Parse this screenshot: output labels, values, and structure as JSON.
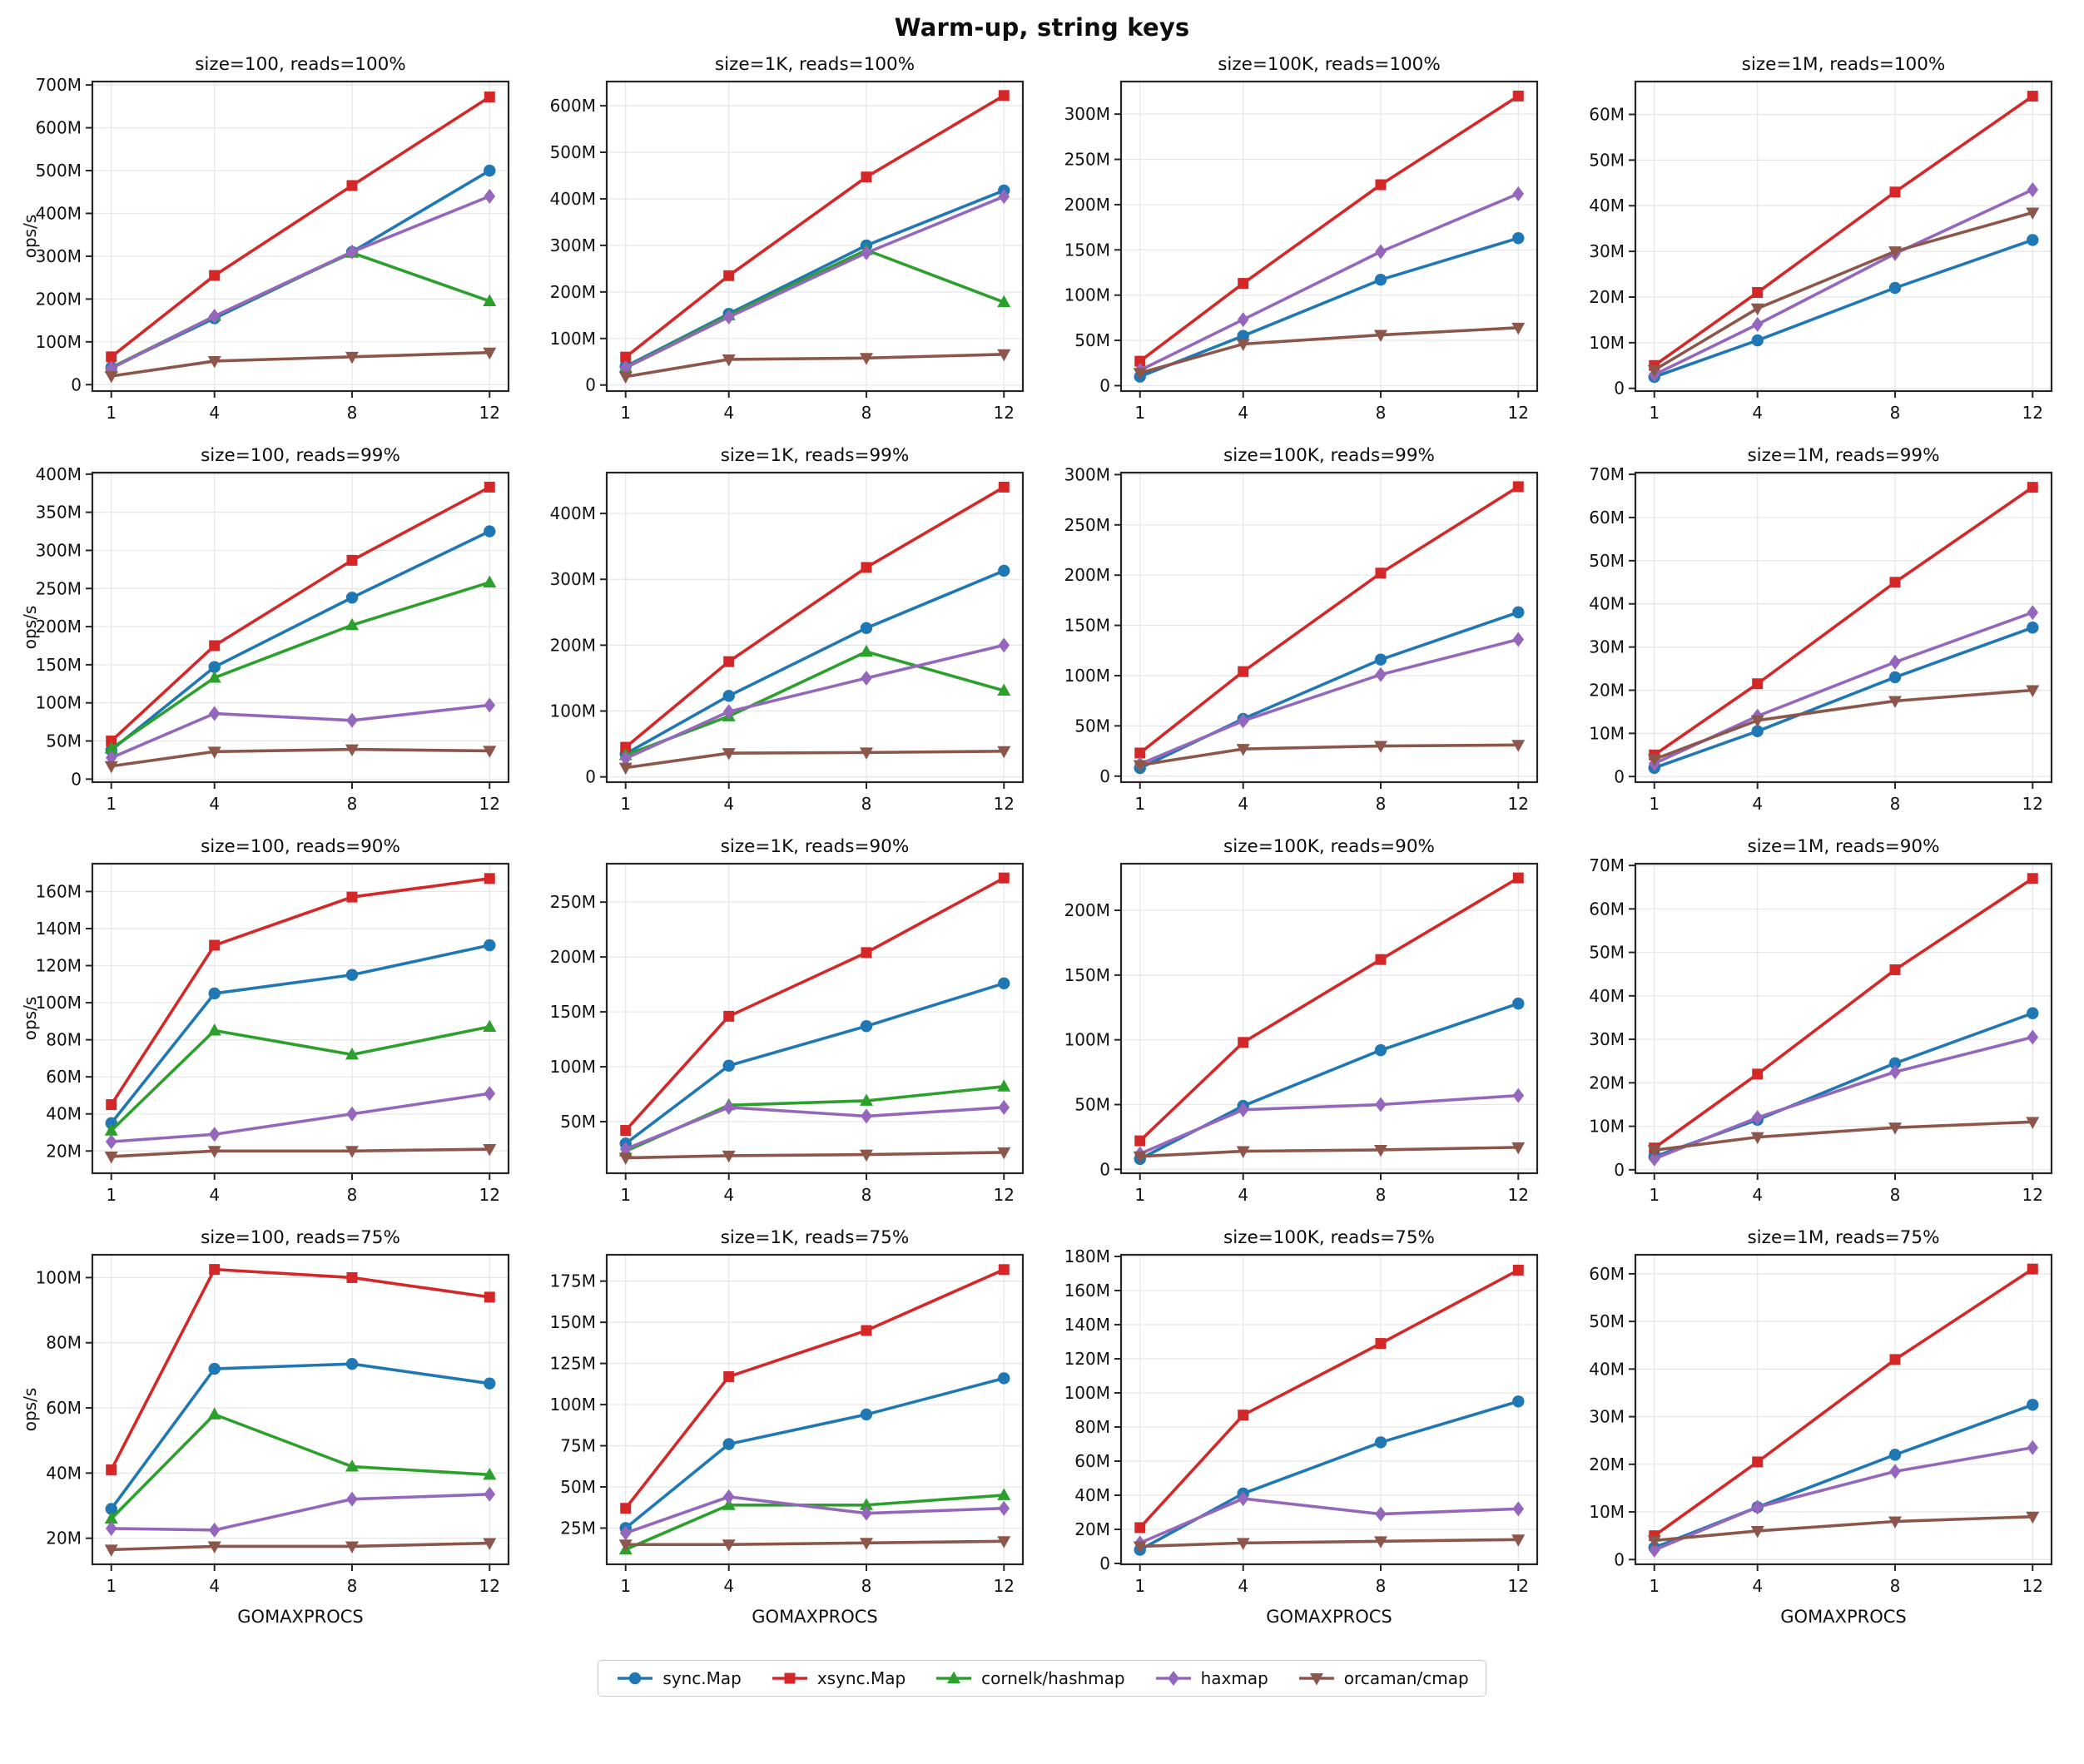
{
  "figure": {
    "title": "Warm-up, string keys",
    "xlabel": "GOMAXPROCS",
    "ylabel": "ops/s"
  },
  "legend": {
    "position": "bottom-center",
    "entries": [
      {
        "name": "sync.Map",
        "color": "#1f77b4",
        "marker": "circle"
      },
      {
        "name": "xsync.Map",
        "color": "#d62728",
        "marker": "square"
      },
      {
        "name": "cornelk/hashmap",
        "color": "#2ca02c",
        "marker": "triangle-up"
      },
      {
        "name": "haxmap",
        "color": "#9467bd",
        "marker": "diamond"
      },
      {
        "name": "orcaman/cmap",
        "color": "#8c564b",
        "marker": "triangle-down"
      }
    ]
  },
  "axes": {
    "x_ticks": [
      1,
      4,
      8,
      12
    ],
    "xlim": [
      0.45,
      12.55
    ],
    "grid": true,
    "grid_color": "#e6e6e6",
    "spine_color": "#262626",
    "value_unit": "M"
  },
  "chart_data": [
    {
      "type": "line",
      "row": 0,
      "col": 0,
      "title": "size=100, reads=100%",
      "x": [
        1,
        4,
        8,
        12
      ],
      "ylim": [
        -15,
        708
      ],
      "yticks": [
        0,
        100,
        200,
        300,
        400,
        500,
        600,
        700
      ],
      "series": [
        {
          "name": "sync.Map",
          "values": [
            40,
            155,
            310,
            500
          ]
        },
        {
          "name": "xsync.Map",
          "values": [
            65,
            255,
            465,
            672
          ]
        },
        {
          "name": "cornelk/hashmap",
          "values": [
            40,
            160,
            308,
            195
          ]
        },
        {
          "name": "haxmap",
          "values": [
            38,
            160,
            310,
            440
          ]
        },
        {
          "name": "orcaman/cmap",
          "values": [
            20,
            55,
            65,
            75
          ]
        }
      ]
    },
    {
      "type": "line",
      "row": 0,
      "col": 1,
      "title": "size=1K, reads=100%",
      "x": [
        1,
        4,
        8,
        12
      ],
      "ylim": [
        -13,
        652
      ],
      "yticks": [
        0,
        100,
        200,
        300,
        400,
        500,
        600
      ],
      "series": [
        {
          "name": "sync.Map",
          "values": [
            40,
            153,
            300,
            418
          ]
        },
        {
          "name": "xsync.Map",
          "values": [
            60,
            235,
            447,
            622
          ]
        },
        {
          "name": "cornelk/hashmap",
          "values": [
            38,
            150,
            290,
            178
          ]
        },
        {
          "name": "haxmap",
          "values": [
            37,
            146,
            284,
            405
          ]
        },
        {
          "name": "orcaman/cmap",
          "values": [
            18,
            55,
            58,
            66
          ]
        }
      ]
    },
    {
      "type": "line",
      "row": 0,
      "col": 2,
      "title": "size=100K, reads=100%",
      "x": [
        1,
        4,
        8,
        12
      ],
      "ylim": [
        -6,
        336
      ],
      "yticks": [
        0,
        50,
        100,
        150,
        200,
        250,
        300
      ],
      "series": [
        {
          "name": "sync.Map",
          "values": [
            10,
            55,
            117,
            163
          ]
        },
        {
          "name": "xsync.Map",
          "values": [
            27,
            113,
            222,
            320
          ]
        },
        {
          "name": "haxmap",
          "values": [
            17,
            73,
            148,
            212
          ]
        },
        {
          "name": "orcaman/cmap",
          "values": [
            14,
            46,
            56,
            64
          ]
        }
      ]
    },
    {
      "type": "line",
      "row": 0,
      "col": 3,
      "title": "size=1M, reads=100%",
      "x": [
        1,
        4,
        8,
        12
      ],
      "ylim": [
        -0.6,
        67.2
      ],
      "yticks": [
        0,
        10,
        20,
        30,
        40,
        50,
        60
      ],
      "series": [
        {
          "name": "sync.Map",
          "values": [
            2.5,
            10.5,
            22,
            32.5
          ]
        },
        {
          "name": "xsync.Map",
          "values": [
            5,
            21,
            43,
            64
          ]
        },
        {
          "name": "haxmap",
          "values": [
            3,
            14,
            29.5,
            43.5
          ]
        },
        {
          "name": "orcaman/cmap",
          "values": [
            4,
            17.5,
            30,
            38.5
          ]
        }
      ]
    },
    {
      "type": "line",
      "row": 1,
      "col": 0,
      "title": "size=100, reads=99%",
      "x": [
        1,
        4,
        8,
        12
      ],
      "ylim": [
        -4,
        402
      ],
      "yticks": [
        0,
        50,
        100,
        150,
        200,
        250,
        300,
        350,
        400
      ],
      "series": [
        {
          "name": "sync.Map",
          "values": [
            38,
            147,
            238,
            325
          ]
        },
        {
          "name": "xsync.Map",
          "values": [
            50,
            175,
            287,
            383
          ]
        },
        {
          "name": "cornelk/hashmap",
          "values": [
            40,
            133,
            202,
            258
          ]
        },
        {
          "name": "haxmap",
          "values": [
            28,
            86,
            77,
            97
          ]
        },
        {
          "name": "orcaman/cmap",
          "values": [
            17,
            36,
            39,
            37
          ]
        }
      ]
    },
    {
      "type": "line",
      "row": 1,
      "col": 1,
      "title": "size=1K, reads=99%",
      "x": [
        1,
        4,
        8,
        12
      ],
      "ylim": [
        -8,
        462
      ],
      "yticks": [
        0,
        100,
        200,
        300,
        400
      ],
      "series": [
        {
          "name": "sync.Map",
          "values": [
            35,
            123,
            226,
            313
          ]
        },
        {
          "name": "xsync.Map",
          "values": [
            45,
            175,
            318,
            440
          ]
        },
        {
          "name": "cornelk/hashmap",
          "values": [
            33,
            92,
            190,
            131
          ]
        },
        {
          "name": "haxmap",
          "values": [
            28,
            99,
            150,
            200
          ]
        },
        {
          "name": "orcaman/cmap",
          "values": [
            14,
            36,
            37,
            39
          ]
        }
      ]
    },
    {
      "type": "line",
      "row": 1,
      "col": 2,
      "title": "size=100K, reads=99%",
      "x": [
        1,
        4,
        8,
        12
      ],
      "ylim": [
        -6,
        302
      ],
      "yticks": [
        0,
        50,
        100,
        150,
        200,
        250,
        300
      ],
      "series": [
        {
          "name": "sync.Map",
          "values": [
            8,
            57,
            116,
            163
          ]
        },
        {
          "name": "xsync.Map",
          "values": [
            23,
            104,
            202,
            288
          ]
        },
        {
          "name": "haxmap",
          "values": [
            12,
            55,
            101,
            136
          ]
        },
        {
          "name": "orcaman/cmap",
          "values": [
            11,
            27,
            30,
            31
          ]
        }
      ]
    },
    {
      "type": "line",
      "row": 1,
      "col": 3,
      "title": "size=1M, reads=99%",
      "x": [
        1,
        4,
        8,
        12
      ],
      "ylim": [
        -1.3,
        70.4
      ],
      "yticks": [
        0,
        10,
        20,
        30,
        40,
        50,
        60,
        70
      ],
      "series": [
        {
          "name": "sync.Map",
          "values": [
            2,
            10.5,
            23,
            34.5
          ]
        },
        {
          "name": "xsync.Map",
          "values": [
            5,
            21.5,
            45,
            67
          ]
        },
        {
          "name": "haxmap",
          "values": [
            3,
            14,
            26.5,
            38
          ]
        },
        {
          "name": "orcaman/cmap",
          "values": [
            4,
            13,
            17.5,
            20
          ]
        }
      ]
    },
    {
      "type": "line",
      "row": 2,
      "col": 0,
      "title": "size=100, reads=90%",
      "x": [
        1,
        4,
        8,
        12
      ],
      "ylim": [
        8,
        175
      ],
      "yticks": [
        20,
        40,
        60,
        80,
        100,
        120,
        140,
        160
      ],
      "series": [
        {
          "name": "sync.Map",
          "values": [
            35,
            105,
            115,
            131
          ]
        },
        {
          "name": "xsync.Map",
          "values": [
            45,
            131,
            157,
            167
          ]
        },
        {
          "name": "cornelk/hashmap",
          "values": [
            31,
            85,
            72,
            87
          ]
        },
        {
          "name": "haxmap",
          "values": [
            25,
            29,
            40,
            51
          ]
        },
        {
          "name": "orcaman/cmap",
          "values": [
            17,
            20,
            20,
            21
          ]
        }
      ]
    },
    {
      "type": "line",
      "row": 2,
      "col": 1,
      "title": "size=1K, reads=90%",
      "x": [
        1,
        4,
        8,
        12
      ],
      "ylim": [
        3,
        285
      ],
      "yticks": [
        50,
        100,
        150,
        200,
        250
      ],
      "series": [
        {
          "name": "sync.Map",
          "values": [
            30,
            101,
            137,
            176
          ]
        },
        {
          "name": "xsync.Map",
          "values": [
            42,
            146,
            204,
            272
          ]
        },
        {
          "name": "cornelk/hashmap",
          "values": [
            23,
            65,
            69,
            82
          ]
        },
        {
          "name": "haxmap",
          "values": [
            25,
            63,
            55,
            63
          ]
        },
        {
          "name": "orcaman/cmap",
          "values": [
            17,
            19,
            20,
            22
          ]
        }
      ]
    },
    {
      "type": "line",
      "row": 2,
      "col": 2,
      "title": "size=100K, reads=90%",
      "x": [
        1,
        4,
        8,
        12
      ],
      "ylim": [
        -3,
        236
      ],
      "yticks": [
        0,
        50,
        100,
        150,
        200
      ],
      "series": [
        {
          "name": "sync.Map",
          "values": [
            8,
            49,
            92,
            128
          ]
        },
        {
          "name": "xsync.Map",
          "values": [
            22,
            98,
            162,
            225
          ]
        },
        {
          "name": "haxmap",
          "values": [
            12,
            46,
            50,
            57
          ]
        },
        {
          "name": "orcaman/cmap",
          "values": [
            10,
            14,
            15,
            17
          ]
        }
      ]
    },
    {
      "type": "line",
      "row": 2,
      "col": 3,
      "title": "size=1M, reads=90%",
      "x": [
        1,
        4,
        8,
        12
      ],
      "ylim": [
        -0.8,
        70.4
      ],
      "yticks": [
        0,
        10,
        20,
        30,
        40,
        50,
        60,
        70
      ],
      "series": [
        {
          "name": "sync.Map",
          "values": [
            3,
            11.5,
            24.5,
            36
          ]
        },
        {
          "name": "xsync.Map",
          "values": [
            5,
            22,
            46,
            67
          ]
        },
        {
          "name": "haxmap",
          "values": [
            2.5,
            12,
            22.5,
            30.5
          ]
        },
        {
          "name": "orcaman/cmap",
          "values": [
            4.5,
            7.5,
            9.7,
            11
          ]
        }
      ]
    },
    {
      "type": "line",
      "row": 3,
      "col": 0,
      "title": "size=100, reads=75%",
      "x": [
        1,
        4,
        8,
        12
      ],
      "ylim": [
        12,
        107
      ],
      "yticks": [
        20,
        40,
        60,
        80,
        100
      ],
      "series": [
        {
          "name": "sync.Map",
          "values": [
            29,
            72,
            73.5,
            67.5
          ]
        },
        {
          "name": "xsync.Map",
          "values": [
            41,
            102.5,
            100,
            94
          ]
        },
        {
          "name": "cornelk/hashmap",
          "values": [
            26,
            58,
            42,
            39.5
          ]
        },
        {
          "name": "haxmap",
          "values": [
            23,
            22.5,
            32,
            33.5
          ]
        },
        {
          "name": "orcaman/cmap",
          "values": [
            16.5,
            17.5,
            17.5,
            18.5
          ]
        }
      ]
    },
    {
      "type": "line",
      "row": 3,
      "col": 1,
      "title": "size=1K, reads=75%",
      "x": [
        1,
        4,
        8,
        12
      ],
      "ylim": [
        3,
        191
      ],
      "yticks": [
        25,
        50,
        75,
        100,
        125,
        150,
        175
      ],
      "series": [
        {
          "name": "sync.Map",
          "values": [
            25,
            76,
            94,
            116
          ]
        },
        {
          "name": "xsync.Map",
          "values": [
            37,
            117,
            145,
            182
          ]
        },
        {
          "name": "cornelk/hashmap",
          "values": [
            12,
            39,
            39,
            45
          ]
        },
        {
          "name": "haxmap",
          "values": [
            22,
            44,
            34,
            37
          ]
        },
        {
          "name": "orcaman/cmap",
          "values": [
            15,
            15,
            16,
            17
          ]
        }
      ]
    },
    {
      "type": "line",
      "row": 3,
      "col": 2,
      "title": "size=100K, reads=75%",
      "x": [
        1,
        4,
        8,
        12
      ],
      "ylim": [
        -0.5,
        181
      ],
      "yticks": [
        0,
        20,
        40,
        60,
        80,
        100,
        120,
        140,
        160,
        180
      ],
      "series": [
        {
          "name": "sync.Map",
          "values": [
            8,
            41,
            71,
            95
          ]
        },
        {
          "name": "xsync.Map",
          "values": [
            21,
            87,
            129,
            172
          ]
        },
        {
          "name": "haxmap",
          "values": [
            12,
            38,
            29,
            32
          ]
        },
        {
          "name": "orcaman/cmap",
          "values": [
            10,
            12,
            13,
            14
          ]
        }
      ]
    },
    {
      "type": "line",
      "row": 3,
      "col": 3,
      "title": "size=1M, reads=75%",
      "x": [
        1,
        4,
        8,
        12
      ],
      "ylim": [
        -1,
        64
      ],
      "yticks": [
        0,
        10,
        20,
        30,
        40,
        50,
        60
      ],
      "series": [
        {
          "name": "sync.Map",
          "values": [
            2.5,
            11,
            22,
            32.5
          ]
        },
        {
          "name": "xsync.Map",
          "values": [
            5,
            20.5,
            42,
            61
          ]
        },
        {
          "name": "haxmap",
          "values": [
            2,
            11,
            18.5,
            23.5
          ]
        },
        {
          "name": "orcaman/cmap",
          "values": [
            4,
            6,
            8,
            9
          ]
        }
      ]
    }
  ]
}
